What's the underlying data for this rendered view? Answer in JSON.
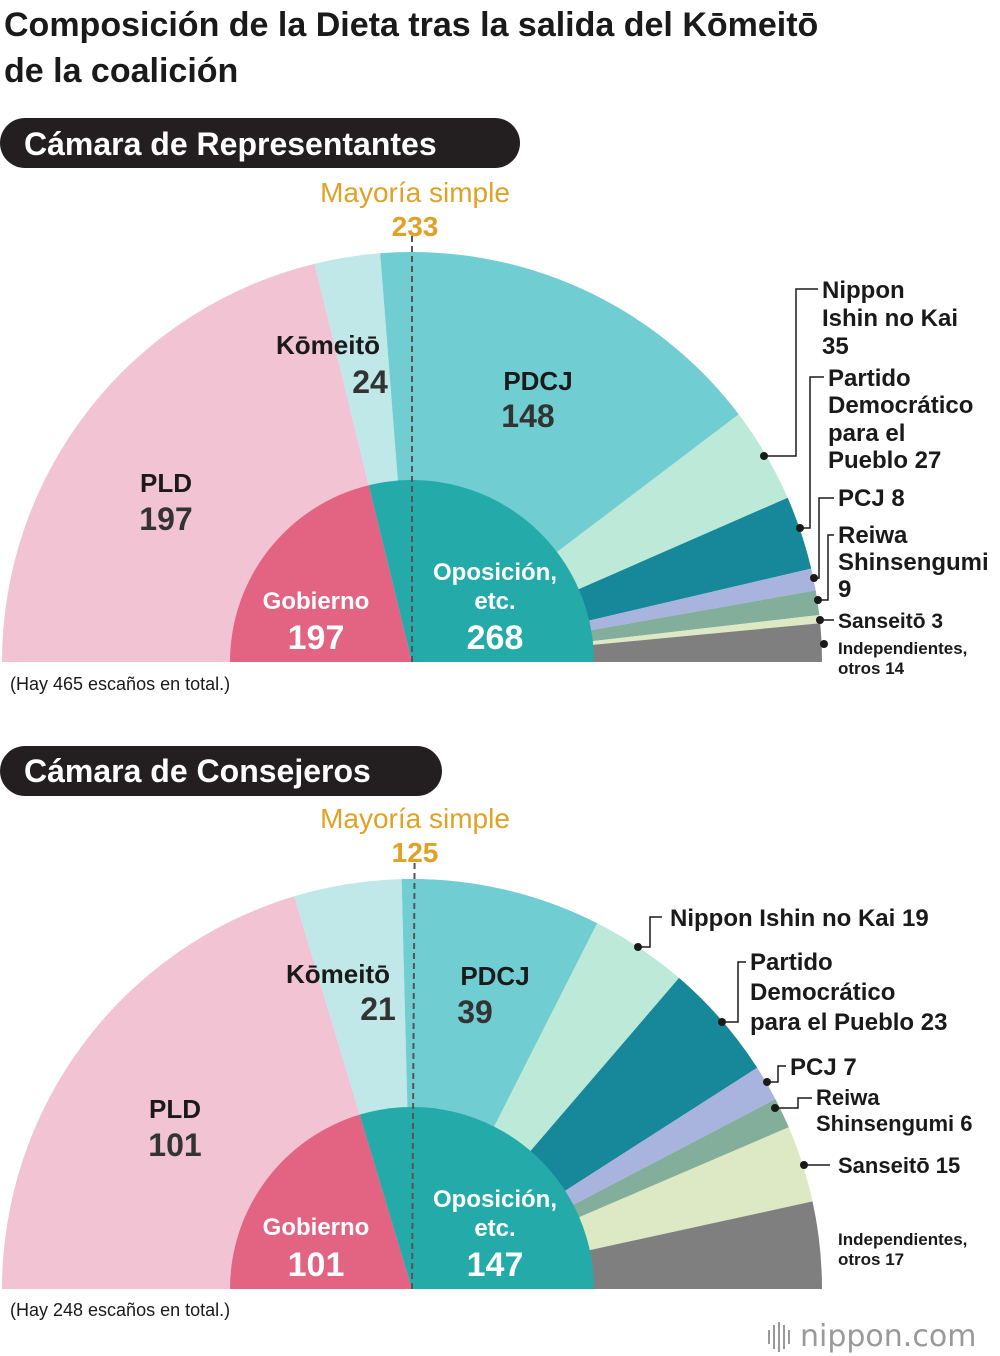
{
  "title_line1": "Composición de la Dieta tras la salida del Kōmeitō",
  "title_line2": "de la coalición",
  "logo_text": "nippon.com",
  "colors": {
    "ldp_light": "#f2c3d2",
    "komeito_light": "#c0e8e8",
    "pdcj": "#70cdd2",
    "ishin": "#bde9d8",
    "dpfp": "#17879a",
    "jcp": "#a8b4de",
    "reiwa": "#84ae9c",
    "sanseito": "#dde8c5",
    "others": "#7f7f7f",
    "government": "#e36383",
    "opposition": "#25aaaa",
    "majority": "#e0a125",
    "pill": "#231f20"
  },
  "chart_data": [
    {
      "type": "pie",
      "chamber": "Cámara de Representantes",
      "total": 465,
      "total_note": "(Hay 465 escaños en total.)",
      "majority_label": "Mayoría simple",
      "majority_value": 233,
      "slices": [
        {
          "name": "PLD",
          "value": 197,
          "color": "ldp_light"
        },
        {
          "name": "Kōmeitō",
          "value": 24,
          "color": "komeito_light"
        },
        {
          "name": "PDCJ",
          "value": 148,
          "color": "pdcj"
        },
        {
          "name": "Nippon Ishin no Kai",
          "value": 35,
          "color": "ishin"
        },
        {
          "name": "Partido Democrático para el Pueblo",
          "value": 27,
          "color": "dpfp"
        },
        {
          "name": "PCJ",
          "value": 8,
          "color": "jcp"
        },
        {
          "name": "Reiwa Shinsengumi",
          "value": 9,
          "color": "reiwa"
        },
        {
          "name": "Sanseitō",
          "value": 3,
          "color": "sanseito"
        },
        {
          "name": "Independientes, otros",
          "value": 14,
          "color": "others"
        }
      ],
      "groups": [
        {
          "name": "Gobierno",
          "value": 197,
          "color": "government"
        },
        {
          "name": "Oposición, etc.",
          "value": 268,
          "color": "opposition"
        }
      ],
      "labels": {
        "ldp_name": "PLD",
        "ldp_num": "197",
        "komeito_name": "Kōmeitō",
        "komeito_num": "24",
        "pdcj_name": "PDCJ",
        "pdcj_num": "148",
        "gov_name": "Gobierno",
        "gov_num": "197",
        "opp_name_1": "Oposición,",
        "opp_name_2": "etc.",
        "opp_num": "268",
        "ishin_1": "Nippon",
        "ishin_2": "Ishin no Kai",
        "ishin_3": "35",
        "dpfp_1": "Partido",
        "dpfp_2": "Democrático",
        "dpfp_3": "para el",
        "dpfp_4": "Pueblo 27",
        "jcp": "PCJ 8",
        "reiwa_1": "Reiwa",
        "reiwa_2": "Shinsengumi",
        "reiwa_3": "9",
        "sanseito": "Sanseitō 3",
        "others_1": "Independientes,",
        "others_2": "otros 14"
      }
    },
    {
      "type": "pie",
      "chamber": "Cámara de Consejeros",
      "total": 248,
      "total_note": "(Hay 248 escaños en total.)",
      "majority_label": "Mayoría simple",
      "majority_value": 125,
      "slices": [
        {
          "name": "PLD",
          "value": 101,
          "color": "ldp_light"
        },
        {
          "name": "Kōmeitō",
          "value": 21,
          "color": "komeito_light"
        },
        {
          "name": "PDCJ",
          "value": 39,
          "color": "pdcj"
        },
        {
          "name": "Nippon Ishin no Kai",
          "value": 19,
          "color": "ishin"
        },
        {
          "name": "Partido Democrático para el Pueblo",
          "value": 23,
          "color": "dpfp"
        },
        {
          "name": "PCJ",
          "value": 7,
          "color": "jcp"
        },
        {
          "name": "Reiwa Shinsengumi",
          "value": 6,
          "color": "reiwa"
        },
        {
          "name": "Sanseitō",
          "value": 15,
          "color": "sanseito"
        },
        {
          "name": "Independientes, otros",
          "value": 17,
          "color": "others"
        }
      ],
      "groups": [
        {
          "name": "Gobierno",
          "value": 101,
          "color": "government"
        },
        {
          "name": "Oposición, etc.",
          "value": 147,
          "color": "opposition"
        }
      ],
      "labels": {
        "ldp_name": "PLD",
        "ldp_num": "101",
        "komeito_name": "Kōmeitō",
        "komeito_num": "21",
        "pdcj_name": "PDCJ",
        "pdcj_num": "39",
        "gov_name": "Gobierno",
        "gov_num": "101",
        "opp_name_1": "Oposición,",
        "opp_name_2": "etc.",
        "opp_num": "147",
        "ishin_1": "Nippon Ishin no Kai 19",
        "dpfp_1": "Partido",
        "dpfp_2": "Democrático",
        "dpfp_3": "para el Pueblo 23",
        "jcp": "PCJ 7",
        "reiwa_1": "Reiwa",
        "reiwa_2": "Shinsengumi 6",
        "sanseito": "Sanseitō 15",
        "others_1": "Independientes,",
        "others_2": "otros 17"
      }
    }
  ]
}
